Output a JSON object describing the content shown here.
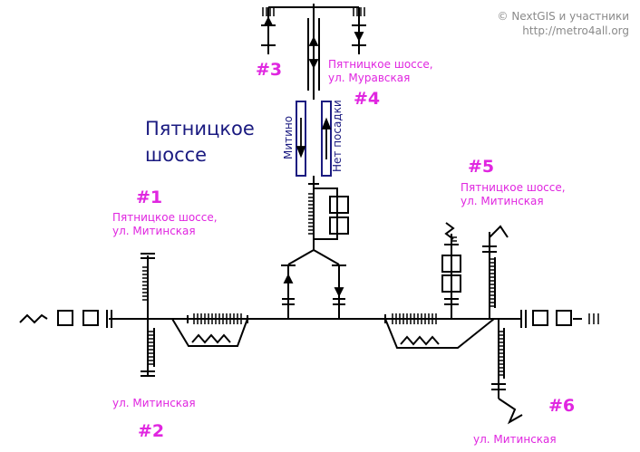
{
  "attribution": {
    "line1": "© NextGIS и участники",
    "line2": "http://metro4all.org"
  },
  "station": {
    "name_line1": "Пятницкое",
    "name_line2": "шоссе"
  },
  "exits": [
    {
      "number": "#1",
      "label_line1": "Пятницкое шоссе,",
      "label_line2": "ул. Митинская"
    },
    {
      "number": "#2",
      "label_line1": "ул. Митинская",
      "label_line2": ""
    },
    {
      "number": "#3",
      "label_line1": "",
      "label_line2": ""
    },
    {
      "number": "#4",
      "label_line1": "Пятницкое шоссе,",
      "label_line2": "ул. Муравская"
    },
    {
      "number": "#5",
      "label_line1": "Пятницкое шоссе,",
      "label_line2": "ул. Митинская"
    },
    {
      "number": "#6",
      "label_line1": "ул. Митинская",
      "label_line2": ""
    }
  ],
  "platform": {
    "left_track": "Митино",
    "right_track": "Нет посадки"
  },
  "colors": {
    "exit_label": "#e026e0",
    "station_name": "#1a1a80",
    "track": "#1a1a80",
    "lines": "#000000",
    "attribution": "#8a8a8a"
  }
}
